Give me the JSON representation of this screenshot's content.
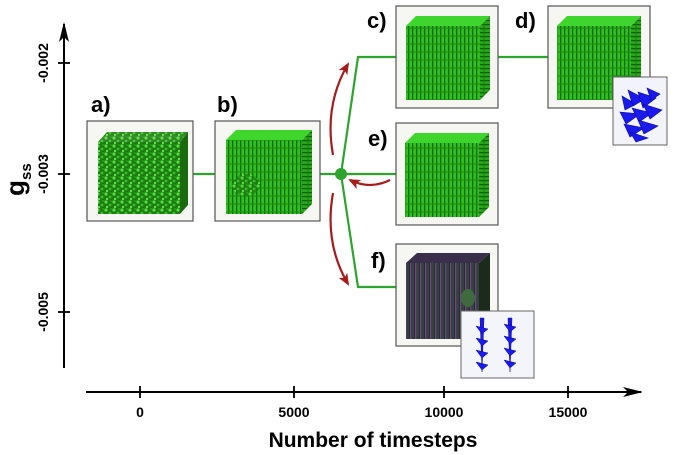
{
  "y_axis": {
    "label_main": "g",
    "label_sub": "ss",
    "ticks": [
      "-0.002",
      "-0.003",
      "-0.005"
    ]
  },
  "x_axis": {
    "label": "Number of timesteps",
    "ticks": [
      "0",
      "5000",
      "10000",
      "15000"
    ]
  },
  "panels": [
    {
      "id": "a",
      "label": "a)"
    },
    {
      "id": "b",
      "label": "b)"
    },
    {
      "id": "c",
      "label": "c)"
    },
    {
      "id": "d",
      "label": "d)"
    },
    {
      "id": "e",
      "label": "e)"
    },
    {
      "id": "f",
      "label": "f)"
    }
  ],
  "colors": {
    "path": "#2ea32e",
    "cube_green": "#33cc22",
    "arrow": "#a61c1c",
    "spin_blue": "#1a1aee"
  }
}
